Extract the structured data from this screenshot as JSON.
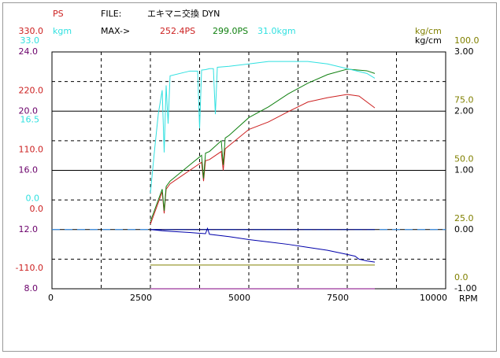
{
  "chart_data": {
    "type": "line",
    "header": {
      "file_label": "FILE:",
      "file_name": "エキマニ交換 DYN",
      "max_label": "MAX->",
      "max_values": [
        {
          "label": "252.4PS",
          "color": "#cc2020"
        },
        {
          "label": "299.0PS",
          "color": "#108010"
        },
        {
          "label": "31.0kgm",
          "color": "#30e0e0"
        }
      ]
    },
    "x_label": "RPM",
    "xlim": [
      0,
      10000
    ],
    "xticks": [
      0,
      2500,
      5000,
      7500,
      10000
    ],
    "x_minor_grid": [
      1250,
      3750,
      6250,
      8750
    ],
    "y_axes": [
      {
        "label": "PS",
        "color": "#cc2020",
        "side": "left",
        "lim": [
          -110,
          330
        ],
        "ticks": [
          {
            "value": 330,
            "label": "330.0"
          },
          {
            "value": 220,
            "label": "220.0"
          },
          {
            "value": 110,
            "label": "110.0"
          },
          {
            "value": 0,
            "label": "0.0"
          },
          {
            "value": -110,
            "label": "-110.0"
          }
        ]
      },
      {
        "label": "kgm",
        "color": "#30e0e0",
        "side": "left",
        "lim": [
          -16.5,
          33
        ],
        "ticks": [
          {
            "value": 33,
            "label": "33.0"
          },
          {
            "value": 16.5,
            "label": "16.5"
          },
          {
            "value": 0,
            "label": "0.0"
          }
        ]
      },
      {
        "color": "#6a006a",
        "side": "left",
        "lim": [
          8,
          24
        ],
        "ticks": [
          {
            "value": 24,
            "label": "24.0"
          },
          {
            "value": 20,
            "label": "20.0"
          },
          {
            "value": 16,
            "label": "16.0"
          },
          {
            "value": 12,
            "label": "12.0"
          },
          {
            "value": 8,
            "label": "8.0"
          }
        ],
        "grid": [
          24,
          20,
          16,
          12,
          8
        ],
        "minor_grid": [
          22,
          18,
          14,
          10
        ]
      },
      {
        "label": "kg/cm",
        "color": "#808000",
        "side": "right",
        "lim": [
          0,
          100
        ],
        "ticks": [
          {
            "value": 100,
            "label": "100.0"
          },
          {
            "value": 75,
            "label": "75.0"
          },
          {
            "value": 50,
            "label": "50.0"
          },
          {
            "value": 25,
            "label": "25.0"
          },
          {
            "value": 0,
            "label": "0.0"
          }
        ]
      },
      {
        "label": "kg/cm",
        "color": "#000000",
        "side": "right",
        "lim": [
          -1,
          3
        ],
        "ticks": [
          {
            "value": 3,
            "label": "3.00"
          },
          {
            "value": 2,
            "label": "2.00"
          },
          {
            "value": 1,
            "label": "1.00"
          },
          {
            "value": 0,
            "label": "0.00"
          },
          {
            "value": -1,
            "label": "-1.00"
          }
        ]
      }
    ],
    "series": [
      {
        "color": "#3399ff",
        "axis": 4,
        "dashed": true,
        "x": [
          0,
          10000
        ],
        "values": [
          0,
          0
        ]
      },
      {
        "color": "#000080",
        "axis": 4,
        "x": [
          2500,
          8200
        ],
        "values": [
          0,
          0
        ]
      },
      {
        "color": "#808000",
        "axis": 3,
        "x": [
          2500,
          8200
        ],
        "values": [
          10,
          10
        ]
      },
      {
        "color": "#800080",
        "axis": 2,
        "x": [
          2500,
          8200
        ],
        "values": [
          8,
          8
        ]
      },
      {
        "color": "#0000aa",
        "axis": 4,
        "x": [
          2500,
          2800,
          3000,
          3500,
          3900,
          3950,
          4000,
          4500,
          5000,
          5500,
          6000,
          6500,
          7000,
          7500,
          7700,
          7800,
          8000,
          8200
        ],
        "values": [
          0,
          -0.02,
          -0.03,
          -0.05,
          -0.07,
          0.02,
          -0.08,
          -0.12,
          -0.17,
          -0.21,
          -0.25,
          -0.3,
          -0.35,
          -0.42,
          -0.45,
          -0.5,
          -0.53,
          -0.55
        ]
      },
      {
        "color": "#cc2020",
        "axis": 0,
        "x": [
          2500,
          2700,
          2800,
          2850,
          2900,
          3000,
          3300,
          3500,
          3800,
          3850,
          3900,
          4000,
          4300,
          4350,
          4400,
          4500,
          5000,
          5500,
          6000,
          6500,
          7000,
          7500,
          7800,
          8200
        ],
        "values": [
          10,
          50,
          70,
          30,
          75,
          85,
          100,
          110,
          125,
          90,
          128,
          130,
          145,
          110,
          150,
          156,
          186,
          200,
          219,
          237,
          245,
          251,
          248,
          226
        ]
      },
      {
        "color": "#108010",
        "axis": 0,
        "x": [
          2500,
          2700,
          2800,
          2850,
          2900,
          3000,
          3300,
          3500,
          3800,
          3850,
          3900,
          4000,
          4300,
          4350,
          4400,
          4500,
          5000,
          5500,
          6000,
          6500,
          7000,
          7500,
          8000,
          8200
        ],
        "values": [
          15,
          55,
          75,
          35,
          80,
          90,
          108,
          120,
          138,
          95,
          142,
          145,
          165,
          120,
          170,
          175,
          208,
          228,
          252,
          272,
          288,
          298,
          295,
          290
        ]
      },
      {
        "color": "#30e0e0",
        "axis": 1,
        "x": [
          2500,
          2600,
          2700,
          2800,
          2850,
          2900,
          2950,
          3000,
          3500,
          3700,
          3750,
          3800,
          3900,
          4000,
          4100,
          4150,
          4200,
          4500,
          5000,
          5500,
          6000,
          6500,
          7000,
          7500,
          8000,
          8200
        ],
        "values": [
          3.5,
          12,
          20,
          25,
          12,
          26,
          18,
          28,
          29,
          29,
          17,
          29.2,
          29.3,
          29.5,
          29.5,
          20,
          29.8,
          30,
          30.5,
          31,
          31,
          31,
          30.5,
          29.5,
          28.5,
          27.5
        ]
      }
    ]
  }
}
